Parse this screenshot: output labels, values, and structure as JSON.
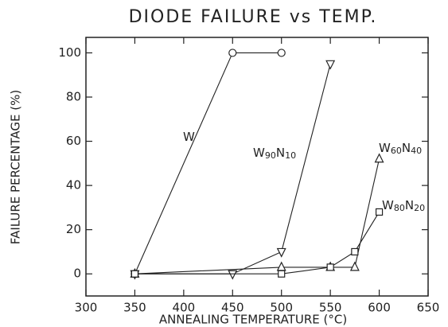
{
  "chart_data": {
    "type": "line",
    "title": "DIODE FAILURE vs TEMP.",
    "x_label": "ANNEALING TEMPERATURE (°C)",
    "y_label": "FAILURE PERCENTAGE (%)",
    "xlim": [
      300,
      650
    ],
    "xticks": [
      300,
      350,
      400,
      450,
      500,
      550,
      600,
      650
    ],
    "ylim": [
      -10,
      107
    ],
    "yticks": [
      0,
      20,
      40,
      60,
      80,
      100
    ],
    "color": "#222",
    "series": [
      {
        "name": "W",
        "marker": "circle",
        "x": [
          350,
          450,
          500
        ],
        "values": [
          0,
          100,
          100
        ]
      },
      {
        "name": "W90N10",
        "marker": "triangle-down",
        "x": [
          350,
          450,
          500,
          550
        ],
        "values": [
          0,
          0,
          10,
          95
        ]
      },
      {
        "name": "W60N40",
        "marker": "triangle-up",
        "x": [
          350,
          500,
          550,
          575,
          600
        ],
        "values": [
          0,
          3,
          3,
          3,
          52
        ]
      },
      {
        "name": "W80N20",
        "marker": "square",
        "x": [
          350,
          500,
          550,
          575,
          600
        ],
        "values": [
          0,
          0,
          3,
          10,
          28
        ]
      }
    ]
  }
}
